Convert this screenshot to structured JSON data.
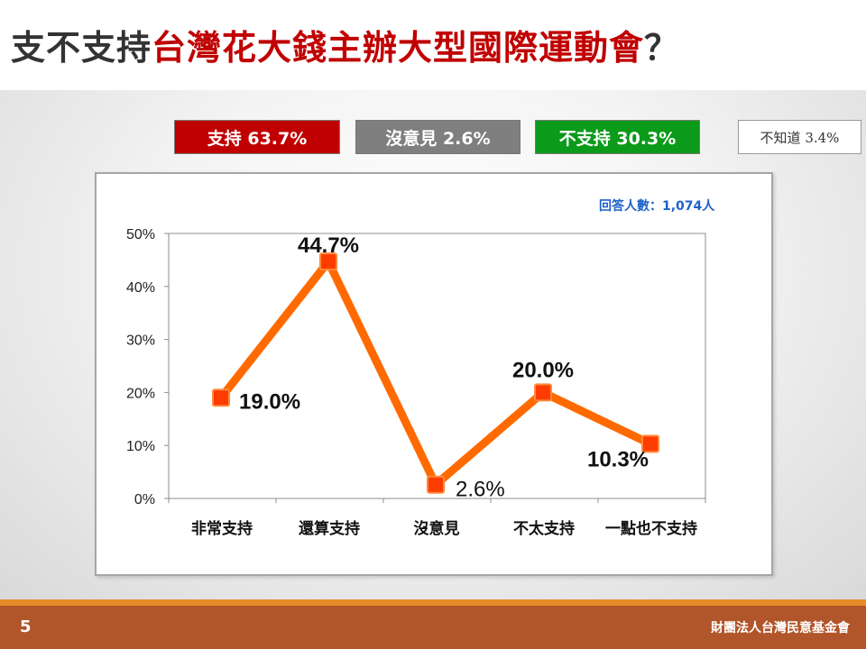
{
  "title": {
    "prefix": "支不支持",
    "highlight": "台灣花大錢主辦大型國際運動會",
    "suffix": "？"
  },
  "summary": {
    "support": "支持 63.7%",
    "no_opinion": "沒意見 2.6%",
    "against": "不支持 30.3%",
    "dont_know": "不知道 3.4%"
  },
  "respondents": "回答人數：1,074人",
  "footer": {
    "page_number": "5",
    "org": "財團法人台灣民意基金會"
  },
  "colors": {
    "title_highlight": "#c00000",
    "support": "#c00000",
    "no_opinion": "#7f7f7f",
    "against": "#0c9a1a",
    "line": "#ff6a00",
    "marker": "#ff3c00",
    "footer": "#b1552a"
  },
  "chart_data": {
    "type": "line",
    "categories": [
      "非常支持",
      "還算支持",
      "沒意見",
      "不太支持",
      "一點也不支持"
    ],
    "values": [
      19.0,
      44.7,
      2.6,
      20.0,
      10.3
    ],
    "data_labels": [
      "19.0%",
      "44.7%",
      "2.6%",
      "20.0%",
      "10.3%"
    ],
    "y_ticks": [
      "0%",
      "10%",
      "20%",
      "30%",
      "40%",
      "50%"
    ],
    "ylim": [
      0,
      50
    ],
    "grid": false
  }
}
